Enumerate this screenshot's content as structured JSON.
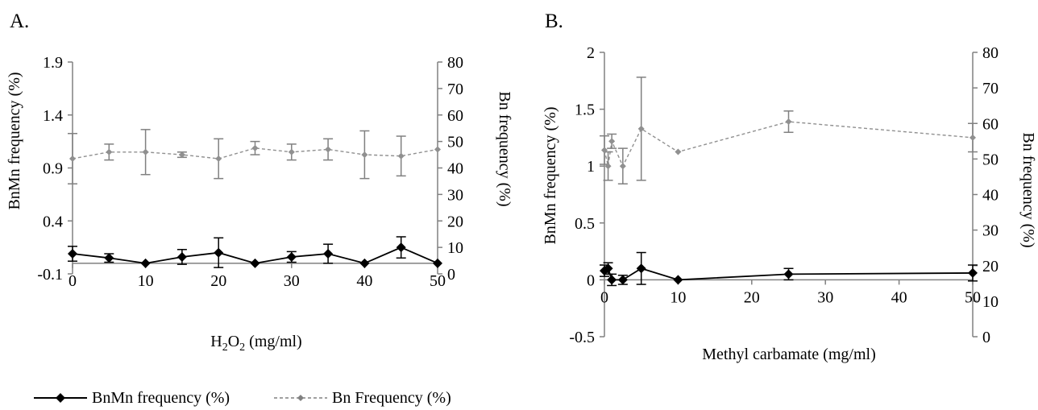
{
  "legend": {
    "items": [
      {
        "label": "BnMn frequency (%)",
        "color": "#000000",
        "dash": false,
        "marker": "diamond"
      },
      {
        "label": "Bn Frequency (%)",
        "color": "#808080",
        "dash": true,
        "marker": "diamond"
      }
    ],
    "placement": "bottom-left"
  },
  "chart_data": [
    {
      "panel_label": "A.",
      "type": "line",
      "xlabel_main": "H",
      "xlabel_sub1": "2",
      "xlabel_mid": "O",
      "xlabel_sub2": "2",
      "xlabel_tail": " (mg/ml)",
      "ylabel_left": "BnMn frequency (%)",
      "ylabel_right": "Bn frequency (%)",
      "xlim": [
        0,
        50
      ],
      "ylim_left": [
        -0.1,
        1.9
      ],
      "ylim_right": [
        0,
        80
      ],
      "x_ticks": [
        "0",
        "10",
        "20",
        "30",
        "40",
        "50"
      ],
      "left_ticks": [
        "-0.1",
        "0.4",
        "0.9",
        "1.4",
        "1.9"
      ],
      "right_ticks": [
        "0",
        "10",
        "20",
        "30",
        "40",
        "50",
        "60",
        "70",
        "80"
      ],
      "series": [
        {
          "name": "BnMn frequency (%)",
          "axis": "left",
          "color": "#000000",
          "dashed": false,
          "points": [
            {
              "x": 0,
              "y": 0.09,
              "err": 0.07
            },
            {
              "x": 5,
              "y": 0.05,
              "err": 0.04
            },
            {
              "x": 10,
              "y": 0.0,
              "err": 0
            },
            {
              "x": 15,
              "y": 0.06,
              "err": 0.07
            },
            {
              "x": 20,
              "y": 0.1,
              "err": 0.14
            },
            {
              "x": 25,
              "y": 0.0,
              "err": 0
            },
            {
              "x": 30,
              "y": 0.06,
              "err": 0.05
            },
            {
              "x": 35,
              "y": 0.09,
              "err": 0.09
            },
            {
              "x": 40,
              "y": 0.0,
              "err": 0
            },
            {
              "x": 45,
              "y": 0.15,
              "err": 0.1
            },
            {
              "x": 50,
              "y": 0.0,
              "err": 0
            }
          ]
        },
        {
          "name": "Bn Frequency (%)",
          "axis": "right",
          "color": "#909090",
          "dashed": true,
          "points": [
            {
              "x": 0,
              "y": 43.5,
              "err": 9.5
            },
            {
              "x": 5,
              "y": 46,
              "err": 3
            },
            {
              "x": 10,
              "y": 46,
              "err": 8.5
            },
            {
              "x": 15,
              "y": 45,
              "err": 1
            },
            {
              "x": 20,
              "y": 43.5,
              "err": 7.5
            },
            {
              "x": 25,
              "y": 47.5,
              "err": 2.5
            },
            {
              "x": 30,
              "y": 46,
              "err": 3
            },
            {
              "x": 35,
              "y": 47,
              "err": 4
            },
            {
              "x": 40,
              "y": 45,
              "err": 9
            },
            {
              "x": 45,
              "y": 44.5,
              "err": 7.5
            },
            {
              "x": 50,
              "y": 47,
              "err": 0
            }
          ]
        }
      ]
    },
    {
      "panel_label": "B.",
      "type": "line",
      "xlabel": "Methyl carbamate (mg/ml)",
      "ylabel_left": "BnMn frequency (%)",
      "ylabel_right": "Bn frequency (%)",
      "xlim": [
        0,
        50
      ],
      "ylim_left": [
        -0.5,
        2
      ],
      "ylim_right": [
        0,
        80
      ],
      "x_ticks": [
        "0",
        "10",
        "20",
        "30",
        "40",
        "50"
      ],
      "left_ticks": [
        "-0.5",
        "0",
        "0.5",
        "1",
        "1.5",
        "2"
      ],
      "right_ticks": [
        "0",
        "10",
        "20",
        "30",
        "40",
        "50",
        "60",
        "70",
        "80"
      ],
      "series": [
        {
          "name": "BnMn frequency (%)",
          "axis": "left",
          "color": "#000000",
          "dashed": false,
          "points": [
            {
              "x": 0,
              "y": 0.08,
              "err": 0.05
            },
            {
              "x": 0.5,
              "y": 0.1,
              "err": 0.05
            },
            {
              "x": 1,
              "y": 0.0,
              "err": 0.05
            },
            {
              "x": 2.5,
              "y": 0.0,
              "err": 0.04
            },
            {
              "x": 5,
              "y": 0.1,
              "err": 0.14
            },
            {
              "x": 10,
              "y": 0.0,
              "err": 0
            },
            {
              "x": 25,
              "y": 0.05,
              "err": 0.05
            },
            {
              "x": 50,
              "y": 0.06,
              "err": 0.07
            }
          ]
        },
        {
          "name": "Bn Frequency (%)",
          "axis": "right",
          "color": "#909090",
          "dashed": true,
          "points": [
            {
              "x": 0,
              "y": 52.5,
              "err": 4
            },
            {
              "x": 0.5,
              "y": 48,
              "err": 4
            },
            {
              "x": 1,
              "y": 55,
              "err": 2
            },
            {
              "x": 2.5,
              "y": 48,
              "err": 5
            },
            {
              "x": 5,
              "y": 58.5,
              "err": 14.5
            },
            {
              "x": 10,
              "y": 52,
              "err": 0
            },
            {
              "x": 25,
              "y": 60.5,
              "err": 3
            },
            {
              "x": 50,
              "y": 56,
              "err": 4
            }
          ]
        }
      ]
    }
  ]
}
